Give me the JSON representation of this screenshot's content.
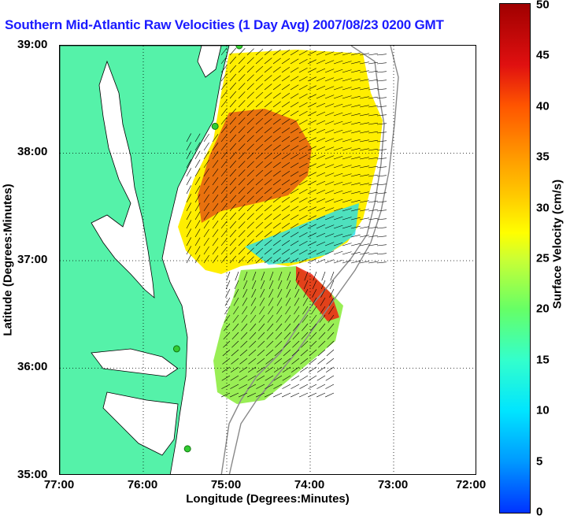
{
  "title": "Southern Mid-Atlantic Raw Velocities (1 Day Avg) 2007/08/23 0200 GMT",
  "axes": {
    "x_title": "Longitude (Degrees:Minutes)",
    "y_title": "Latitude (Degrees:Minutes)",
    "x_ticks": [
      "77:00",
      "76:00",
      "75:00",
      "74:00",
      "73:00",
      "72:00"
    ],
    "y_ticks": [
      "39:00",
      "38:00",
      "37:00",
      "36:00",
      "35:00"
    ],
    "x_range": [
      -77,
      -72
    ],
    "y_range": [
      35,
      39
    ]
  },
  "colorbar": {
    "label": "Surface Velocity (cm/s)",
    "ticks": [
      "0",
      "5",
      "10",
      "15",
      "20",
      "25",
      "30",
      "35",
      "40",
      "45",
      "50"
    ],
    "range": [
      0,
      50
    ]
  },
  "colors": {
    "land": "#55f2a9",
    "coastline": "#000000",
    "bathymetry": "#888888",
    "title": "#1a1aff",
    "station": "#33cc33"
  },
  "stations": [
    {
      "lon": -74.85,
      "lat": 39.0
    },
    {
      "lon": -75.14,
      "lat": 38.25
    },
    {
      "lon": -75.6,
      "lat": 36.18
    },
    {
      "lon": -75.47,
      "lat": 35.25
    }
  ]
}
